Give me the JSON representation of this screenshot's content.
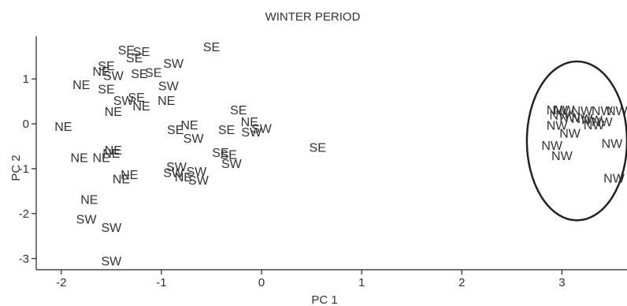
{
  "chart_data": {
    "type": "scatter",
    "title": "WINTER PERIOD",
    "xlabel": "PC 1",
    "ylabel": "PC 2",
    "xlim": [
      -2.25,
      3.65
    ],
    "ylim": [
      -3.25,
      1.95
    ],
    "xticks": [
      -2,
      -1,
      0,
      1,
      2,
      3
    ],
    "xtick_labels": [
      "-2",
      "-1",
      "0",
      "1",
      "2",
      "3"
    ],
    "yticks": [
      -3,
      -2,
      -1,
      0,
      1
    ],
    "ytick_labels": [
      "-3",
      "-2",
      "-1",
      "0",
      "1"
    ],
    "grid": false,
    "legend": "none",
    "points": [
      {
        "label": "SE",
        "x": -1.35,
        "y": 1.65
      },
      {
        "label": "SE",
        "x": -1.2,
        "y": 1.62
      },
      {
        "label": "SE",
        "x": -1.27,
        "y": 1.48
      },
      {
        "label": "SE",
        "x": -0.5,
        "y": 1.72
      },
      {
        "label": "SE",
        "x": -1.55,
        "y": 1.3
      },
      {
        "label": "SW",
        "x": -0.88,
        "y": 1.35
      },
      {
        "label": "SW",
        "x": -1.48,
        "y": 1.08
      },
      {
        "label": "NE",
        "x": -1.6,
        "y": 1.18
      },
      {
        "label": "SE",
        "x": -1.22,
        "y": 1.12
      },
      {
        "label": "SE",
        "x": -1.08,
        "y": 1.15
      },
      {
        "label": "NE",
        "x": -1.8,
        "y": 0.88
      },
      {
        "label": "SE",
        "x": -1.55,
        "y": 0.78
      },
      {
        "label": "SW",
        "x": -0.93,
        "y": 0.85
      },
      {
        "label": "SW",
        "x": -1.38,
        "y": 0.53
      },
      {
        "label": "SE",
        "x": -1.25,
        "y": 0.6
      },
      {
        "label": "NE",
        "x": -0.95,
        "y": 0.53
      },
      {
        "label": "NE",
        "x": -1.2,
        "y": 0.4
      },
      {
        "label": "NE",
        "x": -1.48,
        "y": 0.28
      },
      {
        "label": "SE",
        "x": -0.23,
        "y": 0.32
      },
      {
        "label": "NE",
        "x": -0.12,
        "y": 0.05
      },
      {
        "label": "NE",
        "x": -1.98,
        "y": -0.05
      },
      {
        "label": "NE",
        "x": -0.72,
        "y": -0.02
      },
      {
        "label": "SE",
        "x": -0.86,
        "y": -0.12
      },
      {
        "label": "SE",
        "x": -0.35,
        "y": -0.12
      },
      {
        "label": "SW",
        "x": 0.0,
        "y": -0.1
      },
      {
        "label": "SW",
        "x": -0.1,
        "y": -0.18
      },
      {
        "label": "SW",
        "x": -0.68,
        "y": -0.32
      },
      {
        "label": "SE",
        "x": 0.56,
        "y": -0.52
      },
      {
        "label": "NE",
        "x": -1.48,
        "y": -0.58
      },
      {
        "label": "NE",
        "x": -1.5,
        "y": -0.65
      },
      {
        "label": "NE",
        "x": -1.6,
        "y": -0.75
      },
      {
        "label": "NE",
        "x": -1.82,
        "y": -0.75
      },
      {
        "label": "SE",
        "x": -0.41,
        "y": -0.63
      },
      {
        "label": "SE",
        "x": -0.33,
        "y": -0.68
      },
      {
        "label": "SW",
        "x": -0.3,
        "y": -0.88
      },
      {
        "label": "SW",
        "x": -0.85,
        "y": -0.95
      },
      {
        "label": "SW",
        "x": -0.65,
        "y": -1.05
      },
      {
        "label": "SW",
        "x": -0.88,
        "y": -1.08
      },
      {
        "label": "NE",
        "x": -0.78,
        "y": -1.18
      },
      {
        "label": "SW",
        "x": -0.63,
        "y": -1.25
      },
      {
        "label": "NE",
        "x": -1.32,
        "y": -1.12
      },
      {
        "label": "NE",
        "x": -1.4,
        "y": -1.22
      },
      {
        "label": "NE",
        "x": -1.72,
        "y": -1.68
      },
      {
        "label": "SW",
        "x": -1.75,
        "y": -2.12
      },
      {
        "label": "SW",
        "x": -1.5,
        "y": -2.3
      },
      {
        "label": "SW",
        "x": -1.5,
        "y": -3.05
      },
      {
        "label": "NW",
        "x": 2.95,
        "y": 0.32
      },
      {
        "label": "NW",
        "x": 3.02,
        "y": 0.32
      },
      {
        "label": "NW",
        "x": 3.2,
        "y": 0.3
      },
      {
        "label": "NW",
        "x": 3.4,
        "y": 0.3
      },
      {
        "label": "NW",
        "x": 3.55,
        "y": 0.3
      },
      {
        "label": "NW",
        "x": 2.98,
        "y": 0.2
      },
      {
        "label": "NW",
        "x": 3.08,
        "y": 0.15
      },
      {
        "label": "NW",
        "x": 3.2,
        "y": 0.12
      },
      {
        "label": "NW",
        "x": 3.3,
        "y": 0.1
      },
      {
        "label": "NW",
        "x": 3.4,
        "y": 0.05
      },
      {
        "label": "NW",
        "x": 2.95,
        "y": -0.03
      },
      {
        "label": "NW",
        "x": 3.32,
        "y": -0.02
      },
      {
        "label": "NW",
        "x": 3.08,
        "y": -0.2
      },
      {
        "label": "NW",
        "x": 2.9,
        "y": -0.47
      },
      {
        "label": "NW",
        "x": 3.0,
        "y": -0.7
      },
      {
        "label": "NW",
        "x": 3.5,
        "y": -0.43
      },
      {
        "label": "NW",
        "x": 3.52,
        "y": -1.2
      }
    ],
    "ellipse": {
      "cx": 3.15,
      "cy": -0.38,
      "rx": 0.5,
      "ry": 1.77
    }
  }
}
